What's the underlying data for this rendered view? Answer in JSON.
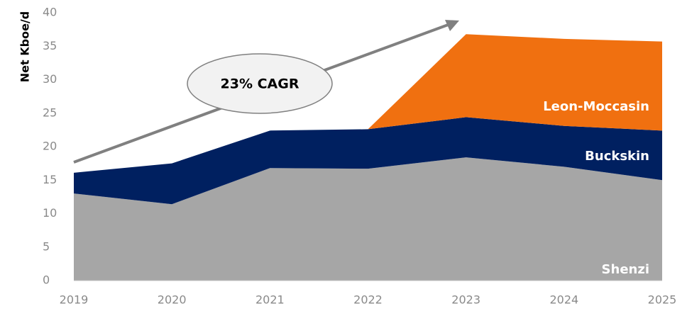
{
  "chart_data": {
    "type": "stacked_area",
    "y_label": "Net Kboe/d",
    "annotation": "23% CAGR",
    "categories": [
      "2019",
      "2020",
      "2021",
      "2022",
      "2023",
      "2024",
      "2025"
    ],
    "series": [
      {
        "name": "Shenzi",
        "color": "#a6a6a6",
        "values": [
          13.0,
          11.4,
          16.8,
          16.7,
          18.4,
          17.0,
          15.0
        ]
      },
      {
        "name": "Buckskin",
        "color": "#002060",
        "values": [
          3.1,
          6.1,
          5.6,
          5.9,
          6.0,
          6.1,
          7.4
        ]
      },
      {
        "name": "Leon-Moccasin",
        "color": "#f07010",
        "values": [
          0,
          0,
          0,
          0,
          12.4,
          13.0,
          13.3
        ]
      }
    ],
    "ylim": [
      0,
      40
    ],
    "yticks": [
      0,
      5,
      10,
      15,
      20,
      25,
      30,
      35,
      40
    ]
  }
}
